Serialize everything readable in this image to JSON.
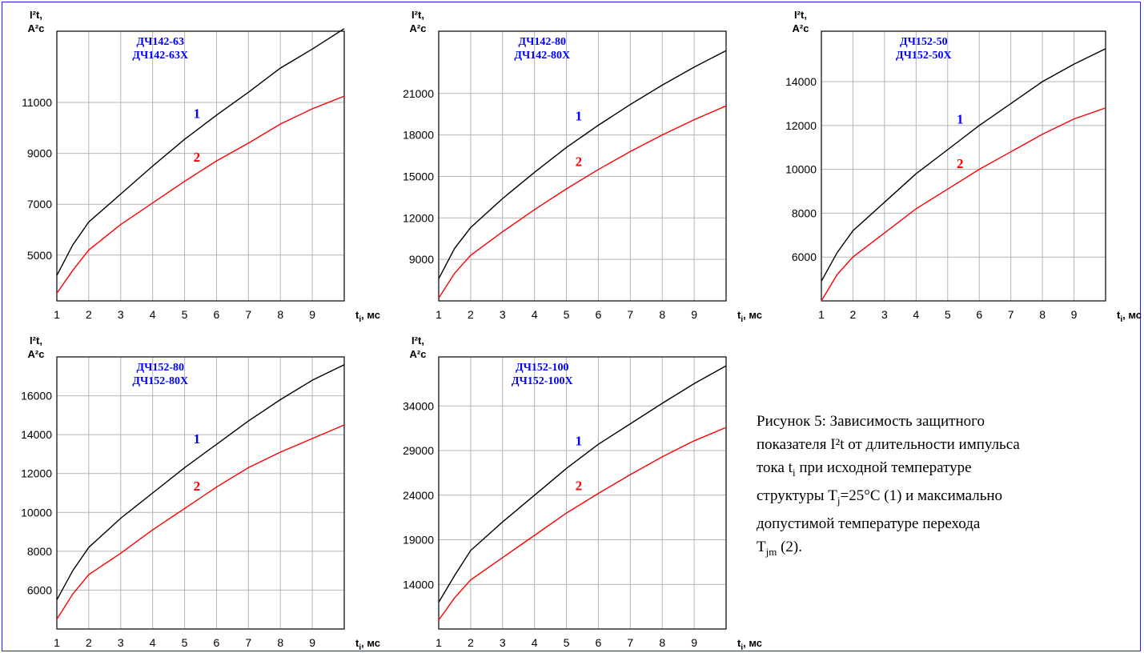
{
  "colors": {
    "frame": "#1a1aff",
    "grid": "#b4b4b4",
    "curve1": "#000000",
    "curve2": "#ff0000",
    "model_label": "#0000ff",
    "label1": "#0000ff",
    "label2": "#ff0000"
  },
  "caption": {
    "line1": "Рисунок 5: Зависимость защитного",
    "line2": "показателя I²t от длительности импульса",
    "line3_a": "тока t",
    "line3_sub": "i",
    "line3_b": " при исходной температуре",
    "line4_a": "структуры T",
    "line4_sub": "j",
    "line4_b": "=25°C (1) и максимально",
    "line5": "допустимой температуре перехода",
    "line6_a": "T",
    "line6_sub": "jm",
    "line6_b": " (2)."
  },
  "chart_data": [
    {
      "type": "line",
      "models": [
        "ДЧ142-63",
        "ДЧ142-63Х"
      ],
      "ylabel_line1": "I²t,",
      "ylabel_line2": "А²с",
      "xlabel_main": "t",
      "xlabel_sub": "i",
      "xlabel_unit": ", мс",
      "x_ticks": [
        1,
        2,
        3,
        4,
        5,
        6,
        7,
        8,
        9
      ],
      "y_ticks": [
        5000,
        7000,
        9000,
        11000
      ],
      "xlim": [
        1,
        10
      ],
      "ylim": [
        3200,
        13800
      ],
      "curve_labels": [
        "1",
        "2"
      ],
      "series": [
        {
          "x": [
            1,
            1.5,
            2,
            3,
            4,
            5,
            6,
            7,
            8,
            9,
            10
          ],
          "y": [
            4200,
            5400,
            6300,
            7400,
            8500,
            9550,
            10500,
            11400,
            12350,
            13100,
            13900
          ]
        },
        {
          "x": [
            1,
            1.5,
            2,
            3,
            4,
            5,
            6,
            7,
            8,
            9,
            10
          ],
          "y": [
            3500,
            4400,
            5200,
            6200,
            7050,
            7900,
            8700,
            9400,
            10150,
            10750,
            11250
          ]
        }
      ]
    },
    {
      "type": "line",
      "models": [
        "ДЧ142-80",
        "ДЧ142-80Х"
      ],
      "ylabel_line1": "I²t,",
      "ylabel_line2": "А²с",
      "xlabel_main": "t",
      "xlabel_sub": "i",
      "xlabel_unit": ", мс",
      "x_ticks": [
        1,
        2,
        3,
        4,
        5,
        6,
        7,
        8,
        9
      ],
      "y_ticks": [
        9000,
        12000,
        15000,
        18000,
        21000
      ],
      "xlim": [
        1,
        10
      ],
      "ylim": [
        6000,
        25500
      ],
      "curve_labels": [
        "1",
        "2"
      ],
      "series": [
        {
          "x": [
            1,
            1.5,
            2,
            3,
            4,
            5,
            6,
            7,
            8,
            9,
            10
          ],
          "y": [
            7600,
            9800,
            11300,
            13400,
            15300,
            17100,
            18700,
            20200,
            21600,
            22900,
            24100
          ]
        },
        {
          "x": [
            1,
            1.5,
            2,
            3,
            4,
            5,
            6,
            7,
            8,
            9,
            10
          ],
          "y": [
            6200,
            8000,
            9300,
            11000,
            12600,
            14100,
            15500,
            16800,
            18000,
            19100,
            20100
          ]
        }
      ]
    },
    {
      "type": "line",
      "models": [
        "ДЧ152-50",
        "ДЧ152-50Х"
      ],
      "ylabel_line1": "I²t,",
      "ylabel_line2": "А²с",
      "xlabel_main": "t",
      "xlabel_sub": "i",
      "xlabel_unit": ", мс",
      "x_ticks": [
        1,
        2,
        3,
        4,
        5,
        6,
        7,
        8,
        9
      ],
      "y_ticks": [
        6000,
        8000,
        10000,
        12000,
        14000
      ],
      "xlim": [
        1,
        10
      ],
      "ylim": [
        4000,
        16300
      ],
      "curve_labels": [
        "1",
        "2"
      ],
      "series": [
        {
          "x": [
            1,
            1.5,
            2,
            3,
            4,
            5,
            6,
            7,
            8,
            9,
            10
          ],
          "y": [
            4900,
            6200,
            7200,
            8500,
            9800,
            10900,
            12000,
            13000,
            14000,
            14800,
            15500
          ]
        },
        {
          "x": [
            1,
            1.5,
            2,
            3,
            4,
            5,
            6,
            7,
            8,
            9,
            10
          ],
          "y": [
            4000,
            5200,
            6000,
            7100,
            8200,
            9100,
            10000,
            10800,
            11600,
            12300,
            12800
          ]
        }
      ]
    },
    {
      "type": "line",
      "models": [
        "ДЧ152-80",
        "ДЧ152-80Х"
      ],
      "ylabel_line1": "I²t,",
      "ylabel_line2": "А²с",
      "xlabel_main": "t",
      "xlabel_sub": "i",
      "xlabel_unit": ", мс",
      "x_ticks": [
        1,
        2,
        3,
        4,
        5,
        6,
        7,
        8,
        9
      ],
      "y_ticks": [
        6000,
        8000,
        10000,
        12000,
        14000,
        16000
      ],
      "xlim": [
        1,
        10
      ],
      "ylim": [
        4000,
        18000
      ],
      "curve_labels": [
        "1",
        "2"
      ],
      "series": [
        {
          "x": [
            1,
            1.5,
            2,
            3,
            4,
            5,
            6,
            7,
            8,
            9,
            10
          ],
          "y": [
            5500,
            7000,
            8200,
            9700,
            11000,
            12300,
            13500,
            14700,
            15800,
            16800,
            17600
          ]
        },
        {
          "x": [
            1,
            1.5,
            2,
            3,
            4,
            5,
            6,
            7,
            8,
            9,
            10
          ],
          "y": [
            4500,
            5800,
            6800,
            7900,
            9100,
            10200,
            11300,
            12300,
            13100,
            13800,
            14500
          ]
        }
      ]
    },
    {
      "type": "line",
      "models": [
        "ДЧ152-100",
        "ДЧ152-100Х"
      ],
      "ylabel_line1": "I²t,",
      "ylabel_line2": "А²с",
      "xlabel_main": "t",
      "xlabel_sub": "i",
      "xlabel_unit": ", мс",
      "x_ticks": [
        1,
        2,
        3,
        4,
        5,
        6,
        7,
        8,
        9
      ],
      "y_ticks": [
        14000,
        19000,
        24000,
        29000,
        34000
      ],
      "xlim": [
        1,
        10
      ],
      "ylim": [
        9000,
        39500
      ],
      "curve_labels": [
        "1",
        "2"
      ],
      "series": [
        {
          "x": [
            1,
            1.5,
            2,
            3,
            4,
            5,
            6,
            7,
            8,
            9,
            10
          ],
          "y": [
            12000,
            15000,
            17800,
            21000,
            24000,
            27000,
            29700,
            32000,
            34300,
            36500,
            38500
          ]
        },
        {
          "x": [
            1,
            1.5,
            2,
            3,
            4,
            5,
            6,
            7,
            8,
            9,
            10
          ],
          "y": [
            10000,
            12500,
            14500,
            17000,
            19500,
            22000,
            24200,
            26300,
            28300,
            30100,
            31600
          ]
        }
      ]
    }
  ]
}
